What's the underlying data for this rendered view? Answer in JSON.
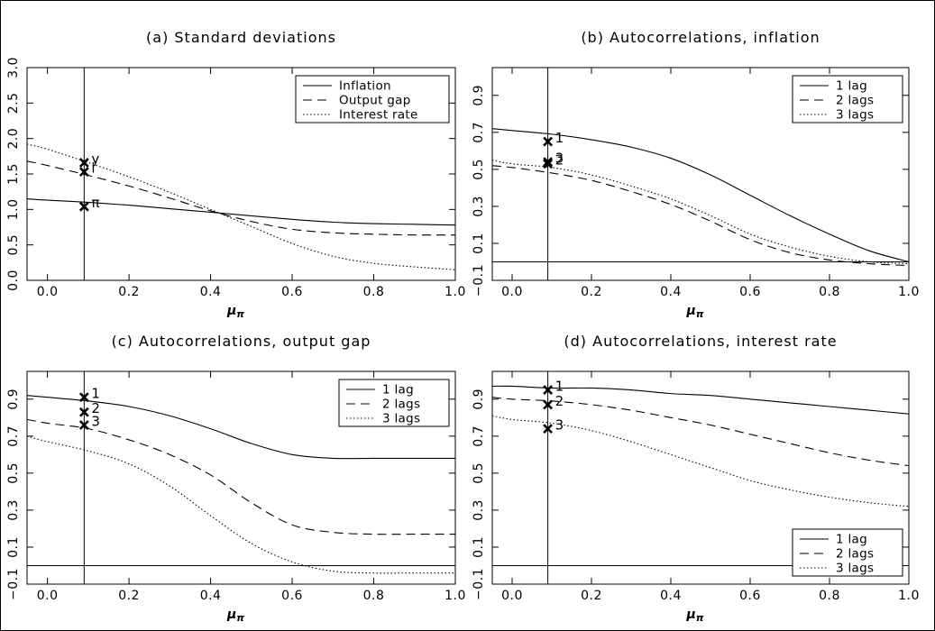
{
  "chart_data": [
    {
      "type": "line",
      "title": "(a) Standard deviations",
      "xlabel": "μπ",
      "xticks": [
        "0.0",
        "0.2",
        "0.4",
        "0.6",
        "0.8",
        "1.0"
      ],
      "yticks": [
        "0.0",
        "0.5",
        "1.0",
        "1.5",
        "2.0",
        "2.5",
        "3.0"
      ],
      "xlim": [
        -0.05,
        1.0
      ],
      "ylim": [
        0,
        3.0
      ],
      "legend_position": "top-right",
      "vline_x": 0.09,
      "hline_y": null,
      "x": [
        -0.05,
        0.0,
        0.1,
        0.2,
        0.3,
        0.4,
        0.5,
        0.6,
        0.7,
        0.8,
        0.9,
        1.0
      ],
      "series": [
        {
          "name": "Inflation",
          "style": "solid",
          "values": [
            1.15,
            1.13,
            1.1,
            1.06,
            1.01,
            0.96,
            0.91,
            0.86,
            0.82,
            0.8,
            0.79,
            0.78
          ]
        },
        {
          "name": "Output gap",
          "style": "dashed",
          "values": [
            1.68,
            1.62,
            1.48,
            1.33,
            1.16,
            0.98,
            0.83,
            0.72,
            0.67,
            0.65,
            0.64,
            0.64
          ]
        },
        {
          "name": "Interest rate",
          "style": "dotted",
          "values": [
            1.92,
            1.85,
            1.66,
            1.46,
            1.24,
            1.0,
            0.76,
            0.52,
            0.34,
            0.24,
            0.19,
            0.15
          ]
        }
      ],
      "markers": [
        {
          "label": "y",
          "x": 0.09,
          "y": 1.66
        },
        {
          "label": "i",
          "x": 0.09,
          "y": 1.53
        },
        {
          "label": "π",
          "x": 0.09,
          "y": 1.04
        }
      ]
    },
    {
      "type": "line",
      "title": "(b) Autocorrelations, inflation",
      "xlabel": "μπ",
      "xticks": [
        "0.0",
        "0.2",
        "0.4",
        "0.6",
        "0.8",
        "1.0"
      ],
      "yticks": [
        "−0.1",
        "0.1",
        "0.3",
        "0.5",
        "0.7",
        "0.9"
      ],
      "xlim": [
        -0.05,
        1.0
      ],
      "ylim": [
        -0.1,
        1.05
      ],
      "legend_position": "top-right",
      "vline_x": 0.09,
      "hline_y": 0.0,
      "x": [
        -0.05,
        0.0,
        0.1,
        0.2,
        0.3,
        0.4,
        0.5,
        0.6,
        0.7,
        0.8,
        0.9,
        1.0
      ],
      "series": [
        {
          "name": "1 lag",
          "style": "solid",
          "values": [
            0.72,
            0.71,
            0.69,
            0.66,
            0.62,
            0.56,
            0.47,
            0.36,
            0.25,
            0.15,
            0.06,
            0.0
          ]
        },
        {
          "name": "2 lags",
          "style": "dashed",
          "values": [
            0.52,
            0.51,
            0.48,
            0.44,
            0.38,
            0.31,
            0.22,
            0.12,
            0.05,
            0.01,
            -0.01,
            -0.02
          ]
        },
        {
          "name": "3 lags",
          "style": "dotted",
          "values": [
            0.55,
            0.53,
            0.51,
            0.47,
            0.41,
            0.34,
            0.25,
            0.15,
            0.08,
            0.03,
            0.0,
            -0.01
          ]
        }
      ],
      "markers": [
        {
          "label": "1",
          "x": 0.09,
          "y": 0.65
        },
        {
          "label": "3",
          "x": 0.09,
          "y": 0.54
        },
        {
          "label": "2",
          "x": 0.09,
          "y": 0.53
        }
      ]
    },
    {
      "type": "line",
      "title": "(c) Autocorrelations, output gap",
      "xlabel": "μπ",
      "xticks": [
        "0.0",
        "0.2",
        "0.4",
        "0.6",
        "0.8",
        "1.0"
      ],
      "yticks": [
        "−0.1",
        "0.1",
        "0.3",
        "0.5",
        "0.7",
        "0.9"
      ],
      "xlim": [
        -0.05,
        1.0
      ],
      "ylim": [
        -0.1,
        1.05
      ],
      "legend_position": "top-right",
      "vline_x": 0.09,
      "hline_y": 0.0,
      "x": [
        -0.05,
        0.0,
        0.1,
        0.2,
        0.3,
        0.4,
        0.5,
        0.6,
        0.7,
        0.8,
        0.9,
        1.0
      ],
      "series": [
        {
          "name": "1 lag",
          "style": "solid",
          "values": [
            0.92,
            0.91,
            0.89,
            0.86,
            0.81,
            0.74,
            0.66,
            0.6,
            0.58,
            0.58,
            0.58,
            0.58
          ]
        },
        {
          "name": "2 lags",
          "style": "dashed",
          "values": [
            0.79,
            0.77,
            0.74,
            0.68,
            0.6,
            0.49,
            0.34,
            0.22,
            0.18,
            0.17,
            0.17,
            0.17
          ]
        },
        {
          "name": "3 lags",
          "style": "dotted",
          "values": [
            0.7,
            0.67,
            0.62,
            0.55,
            0.43,
            0.27,
            0.12,
            0.02,
            -0.03,
            -0.04,
            -0.04,
            -0.04
          ]
        }
      ],
      "markers": [
        {
          "label": "1",
          "x": 0.09,
          "y": 0.91
        },
        {
          "label": "2",
          "x": 0.09,
          "y": 0.83
        },
        {
          "label": "3",
          "x": 0.09,
          "y": 0.76
        }
      ]
    },
    {
      "type": "line",
      "title": "(d) Autocorrelations, interest rate",
      "xlabel": "μπ",
      "xticks": [
        "0.0",
        "0.2",
        "0.4",
        "0.6",
        "0.8",
        "1.0"
      ],
      "yticks": [
        "−0.1",
        "0.1",
        "0.3",
        "0.5",
        "0.7",
        "0.9"
      ],
      "xlim": [
        -0.05,
        1.0
      ],
      "ylim": [
        -0.1,
        1.05
      ],
      "legend_position": "bottom-right",
      "vline_x": 0.09,
      "hline_y": 0.0,
      "x": [
        -0.05,
        0.0,
        0.1,
        0.2,
        0.3,
        0.4,
        0.5,
        0.6,
        0.7,
        0.8,
        0.9,
        1.0
      ],
      "series": [
        {
          "name": "1 lag",
          "style": "solid",
          "values": [
            0.97,
            0.97,
            0.96,
            0.96,
            0.95,
            0.93,
            0.92,
            0.9,
            0.88,
            0.86,
            0.84,
            0.82
          ]
        },
        {
          "name": "2 lags",
          "style": "dashed",
          "values": [
            0.91,
            0.9,
            0.89,
            0.87,
            0.84,
            0.8,
            0.76,
            0.71,
            0.66,
            0.61,
            0.57,
            0.54
          ]
        },
        {
          "name": "3 lags",
          "style": "dotted",
          "values": [
            0.81,
            0.79,
            0.77,
            0.73,
            0.67,
            0.6,
            0.53,
            0.46,
            0.41,
            0.37,
            0.34,
            0.32
          ]
        }
      ],
      "markers": [
        {
          "label": "1",
          "x": 0.09,
          "y": 0.95
        },
        {
          "label": "2",
          "x": 0.09,
          "y": 0.87
        },
        {
          "label": "3",
          "x": 0.09,
          "y": 0.74
        }
      ]
    }
  ]
}
